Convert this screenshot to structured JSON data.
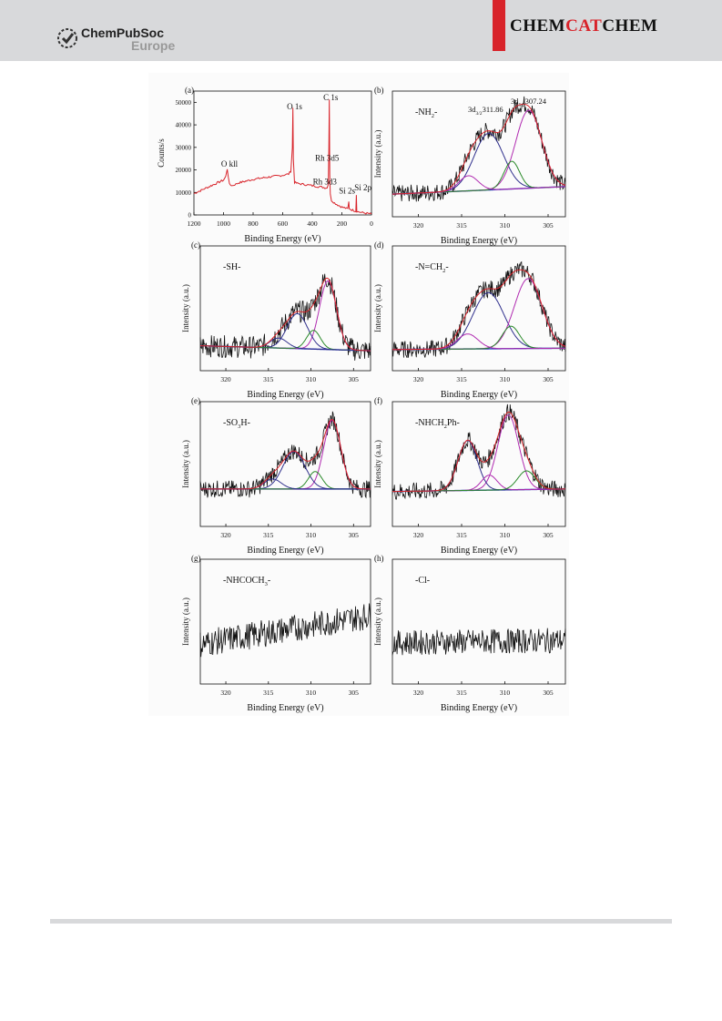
{
  "header": {
    "publisher_line1": "ChemPubSoc",
    "publisher_line2": "Europe",
    "journal_part1": "CHEM",
    "journal_part2": "CAT",
    "journal_part3": "CHEM",
    "accent_color": "#d8232a",
    "band_color": "#d8d9db"
  },
  "chart_data": [
    {
      "panel": "(a)",
      "type": "line",
      "xlabel": "Binding Energy (eV)",
      "ylabel": "Counts/s",
      "xlim": [
        1200,
        0
      ],
      "ylim": [
        0,
        55000
      ],
      "xticks": [
        1200,
        1000,
        800,
        600,
        400,
        200,
        0
      ],
      "yticks": [
        0,
        10000,
        20000,
        30000,
        40000,
        50000
      ],
      "color": "#d8232a",
      "x": [
        1200,
        1150,
        1100,
        1050,
        1000,
        985,
        975,
        960,
        940,
        900,
        850,
        800,
        750,
        700,
        650,
        600,
        560,
        545,
        535,
        531,
        528,
        520,
        500,
        470,
        440,
        400,
        360,
        330,
        300,
        292,
        288,
        285,
        282,
        278,
        270,
        250,
        220,
        200,
        175,
        160,
        153,
        150,
        140,
        120,
        106,
        102,
        99,
        90,
        60,
        30,
        0
      ],
      "y": [
        9500,
        11000,
        12500,
        14000,
        15500,
        17000,
        20500,
        13500,
        13000,
        14200,
        15000,
        15800,
        16300,
        16800,
        17200,
        17600,
        18200,
        19500,
        30000,
        47500,
        25000,
        14500,
        14000,
        13700,
        13400,
        13000,
        12600,
        12300,
        12000,
        14000,
        30000,
        51500,
        18000,
        9000,
        6500,
        5300,
        4200,
        3500,
        3000,
        2700,
        5800,
        3000,
        2400,
        2000,
        1700,
        9000,
        1700,
        1400,
        1000,
        700,
        400
      ],
      "annotations": [
        {
          "text": "O kll",
          "x": 960,
          "y": 21500
        },
        {
          "text": "O 1s",
          "x": 520,
          "y": 47000
        },
        {
          "text": "C 1s",
          "x": 275,
          "y": 51000
        },
        {
          "text": "Rh 3d5",
          "x": 300,
          "y": 24000
        },
        {
          "text": "Rh 3d3",
          "x": 315,
          "y": 13500
        },
        {
          "text": "Si 2s",
          "x": 165,
          "y": 9500
        },
        {
          "text": "Si 2p",
          "x": 58,
          "y": 11000
        }
      ]
    },
    {
      "panel": "(b)",
      "label": "-NH",
      "label_sub": "2",
      "label_end": "-",
      "type": "line",
      "xlabel": "Binding Energy (eV)",
      "ylabel": "Intensity (a.u.)",
      "xlim": [
        323,
        303
      ],
      "xticks": [
        320,
        315,
        310,
        305
      ],
      "baseline": 0.18,
      "baseline_end": 0.24,
      "noise": 0.07,
      "peaks": [
        {
          "center": 311.86,
          "height": 0.45,
          "width": 1.7,
          "color": "#2e2e8c"
        },
        {
          "center": 307.24,
          "height": 0.62,
          "width": 1.5,
          "color": "#b02ab0"
        },
        {
          "center": 309.2,
          "height": 0.22,
          "width": 0.9,
          "color": "#2a8a2a"
        },
        {
          "center": 314.2,
          "height": 0.12,
          "width": 1.1,
          "color": "#b02ab0"
        }
      ],
      "peak_labels": [
        {
          "text": "3d",
          "sub": "3/2",
          "after": "311.86"
        },
        {
          "text": "3d",
          "sub": "5/2",
          "after": "307.24"
        }
      ]
    },
    {
      "panel": "(c)",
      "label": "-SH-",
      "label_sub": "",
      "label_end": "",
      "type": "line",
      "xlabel": "Binding Energy (eV)",
      "ylabel": "Intensity (a.u.)",
      "xlim": [
        323,
        303
      ],
      "xticks": [
        320,
        315,
        310,
        305
      ],
      "baseline": 0.2,
      "baseline_end": 0.16,
      "noise": 0.09,
      "peaks": [
        {
          "center": 308.0,
          "height": 0.55,
          "width": 1.0,
          "color": "#b02ab0"
        },
        {
          "center": 311.6,
          "height": 0.28,
          "width": 1.2,
          "color": "#2e2e8c"
        },
        {
          "center": 309.7,
          "height": 0.15,
          "width": 0.8,
          "color": "#2a8a2a"
        },
        {
          "center": 313.8,
          "height": 0.08,
          "width": 1.0,
          "color": "#2e2e8c"
        }
      ],
      "peak_labels": []
    },
    {
      "panel": "(d)",
      "label": "-N=CH",
      "label_sub": "2",
      "label_end": "-",
      "type": "line",
      "xlabel": "Binding Energy (eV)",
      "ylabel": "Intensity (a.u.)",
      "xlim": [
        323,
        303
      ],
      "xticks": [
        320,
        315,
        310,
        305
      ],
      "baseline": 0.17,
      "baseline_end": 0.18,
      "noise": 0.07,
      "peaks": [
        {
          "center": 311.9,
          "height": 0.45,
          "width": 1.8,
          "color": "#2e2e8c"
        },
        {
          "center": 307.3,
          "height": 0.56,
          "width": 1.6,
          "color": "#b02ab0"
        },
        {
          "center": 309.3,
          "height": 0.18,
          "width": 1.0,
          "color": "#2a8a2a"
        },
        {
          "center": 314.3,
          "height": 0.12,
          "width": 1.2,
          "color": "#b02ab0"
        }
      ],
      "peak_labels": []
    },
    {
      "panel": "(e)",
      "label": "-SO",
      "label_sub": "3",
      "label_end": "H-",
      "type": "line",
      "xlabel": "Binding Energy (eV)",
      "ylabel": "Intensity (a.u.)",
      "xlim": [
        323,
        303
      ],
      "xticks": [
        320,
        315,
        310,
        305
      ],
      "baseline": 0.3,
      "baseline_end": 0.3,
      "noise": 0.07,
      "peaks": [
        {
          "center": 307.5,
          "height": 0.55,
          "width": 1.0,
          "color": "#b02ab0"
        },
        {
          "center": 312.0,
          "height": 0.3,
          "width": 1.3,
          "color": "#2e2e8c"
        },
        {
          "center": 309.5,
          "height": 0.14,
          "width": 0.8,
          "color": "#2a8a2a"
        },
        {
          "center": 314.5,
          "height": 0.08,
          "width": 1.0,
          "color": "#2e2e8c"
        }
      ],
      "peak_labels": []
    },
    {
      "panel": "(f)",
      "label": "-NHCH",
      "label_sub": "2",
      "label_end": "Ph-",
      "type": "line",
      "xlabel": "Binding Energy (eV)",
      "ylabel": "Intensity (a.u.)",
      "xlim": [
        323,
        303
      ],
      "xticks": [
        320,
        315,
        310,
        305
      ],
      "baseline": 0.28,
      "baseline_end": 0.3,
      "noise": 0.07,
      "peaks": [
        {
          "center": 309.6,
          "height": 0.6,
          "width": 1.2,
          "color": "#b02ab0"
        },
        {
          "center": 314.3,
          "height": 0.4,
          "width": 1.1,
          "color": "#2e2e8c"
        },
        {
          "center": 311.8,
          "height": 0.12,
          "width": 0.9,
          "color": "#b02ab0"
        },
        {
          "center": 307.5,
          "height": 0.15,
          "width": 1.0,
          "color": "#2a8a2a"
        }
      ],
      "peak_labels": []
    },
    {
      "panel": "(g)",
      "label": "-NHCOCH",
      "label_sub": "3",
      "label_end": "-",
      "type": "line",
      "xlabel": "Binding Energy (eV)",
      "ylabel": "Intensity (a.u.)",
      "xlim": [
        323,
        303
      ],
      "xticks": [
        320,
        315,
        310,
        305
      ],
      "baseline": 0.32,
      "baseline_end": 0.55,
      "noise": 0.11,
      "peaks": [],
      "peak_labels": []
    },
    {
      "panel": "(h)",
      "label": "-Cl-",
      "label_sub": "",
      "label_end": "",
      "type": "line",
      "xlabel": "Binding Energy (eV)",
      "ylabel": "Intensity (a.u.)",
      "xlim": [
        323,
        303
      ],
      "xticks": [
        320,
        315,
        310,
        305
      ],
      "baseline": 0.33,
      "baseline_end": 0.35,
      "noise": 0.1,
      "peaks": [],
      "peak_labels": []
    }
  ]
}
